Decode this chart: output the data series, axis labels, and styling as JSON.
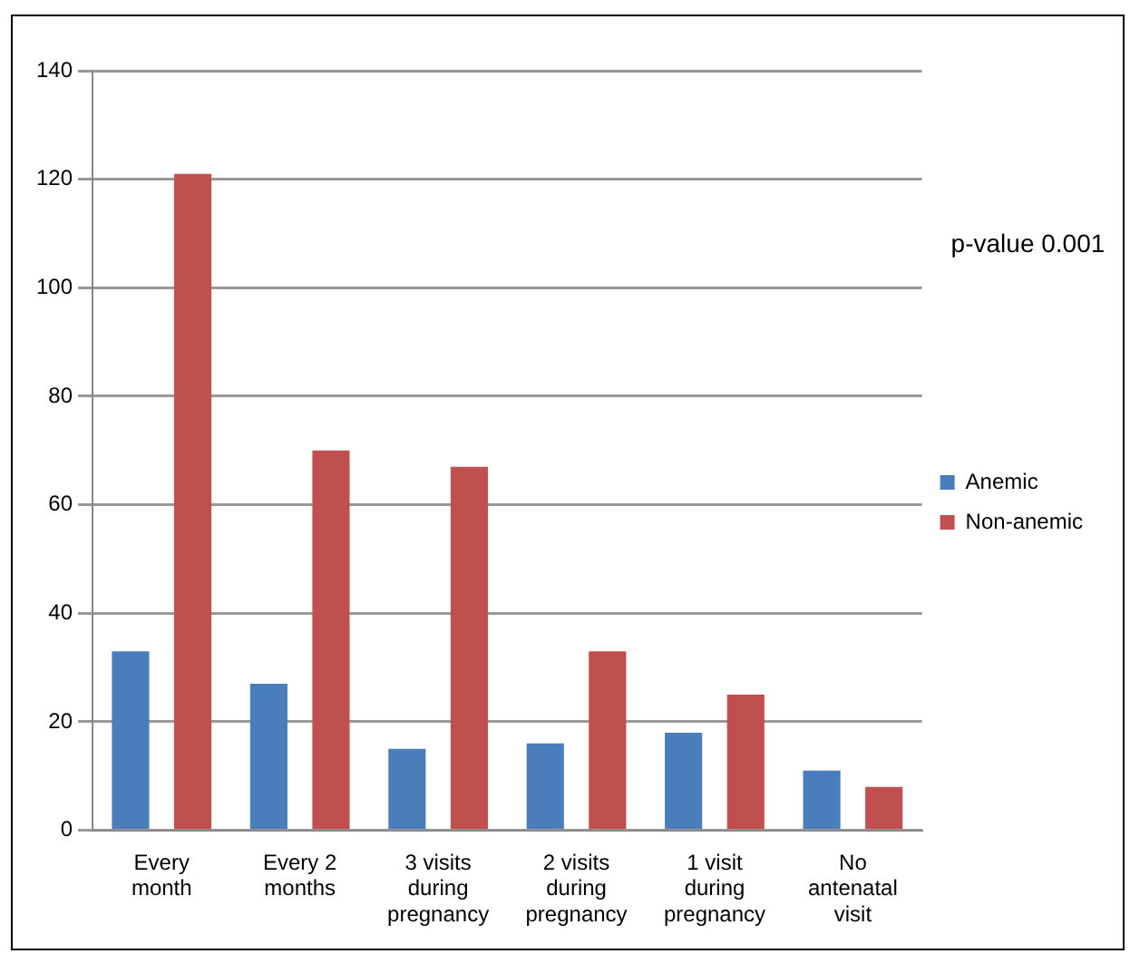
{
  "chart_data": {
    "type": "bar",
    "categories": [
      "Every month",
      "Every 2 months",
      "3 visits during pregnancy",
      "2 visits during pregnancy",
      "1 visit during pregnancy",
      "No antenatal visit"
    ],
    "series": [
      {
        "name": "Anemic",
        "color": "#4a7ebb",
        "values": [
          33,
          27,
          15,
          16,
          18,
          11
        ]
      },
      {
        "name": "Non-anemic",
        "color": "#c0504d",
        "values": [
          121,
          70,
          67,
          33,
          25,
          8
        ]
      }
    ],
    "ylim": [
      0,
      140
    ],
    "yticks": [
      0,
      20,
      40,
      60,
      80,
      100,
      120,
      140
    ],
    "grid": "y",
    "legend": "right",
    "annotations": [
      "p-value 0.001"
    ]
  }
}
